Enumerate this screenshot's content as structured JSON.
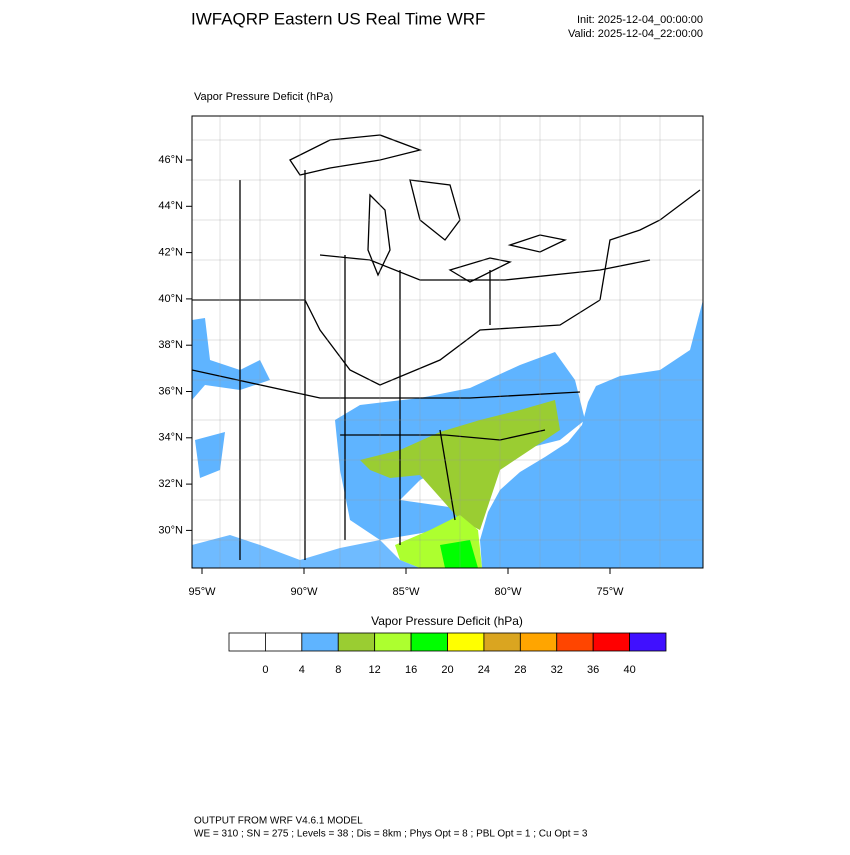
{
  "header": {
    "title": "IWFAQRP Eastern US Real Time WRF",
    "init": "Init: 2025-12-04_00:00:00",
    "valid": "Valid: 2025-12-04_22:00:00"
  },
  "map": {
    "title": "Vapor Pressure Deficit   (hPa)",
    "lat_labels": [
      "46°N",
      "44°N",
      "42°N",
      "40°N",
      "38°N",
      "36°N",
      "34°N",
      "32°N",
      "30°N"
    ],
    "lon_labels": [
      "95°W",
      "90°W",
      "85°W",
      "80°W",
      "75°W"
    ]
  },
  "colorbar": {
    "title": "Vapor Pressure Deficit   (hPa)",
    "labels": [
      0,
      4,
      8,
      12,
      16,
      20,
      24,
      28,
      32,
      36,
      40
    ],
    "colors": [
      "#ffffff",
      "#ffffff",
      "#5fb4ff",
      "#9acd32",
      "#adff2f",
      "#00ff00",
      "#ffff00",
      "#daa520",
      "#ffa500",
      "#ff4500",
      "#ff0000",
      "#4010ff"
    ]
  },
  "footer": {
    "line1": "OUTPUT FROM WRF V4.6.1 MODEL",
    "line2": "WE = 310 ; SN = 275 ; Levels = 38 ; Dis = 8km ; Phys Opt = 8 ; PBL Opt = 1 ; Cu Opt = 3"
  }
}
